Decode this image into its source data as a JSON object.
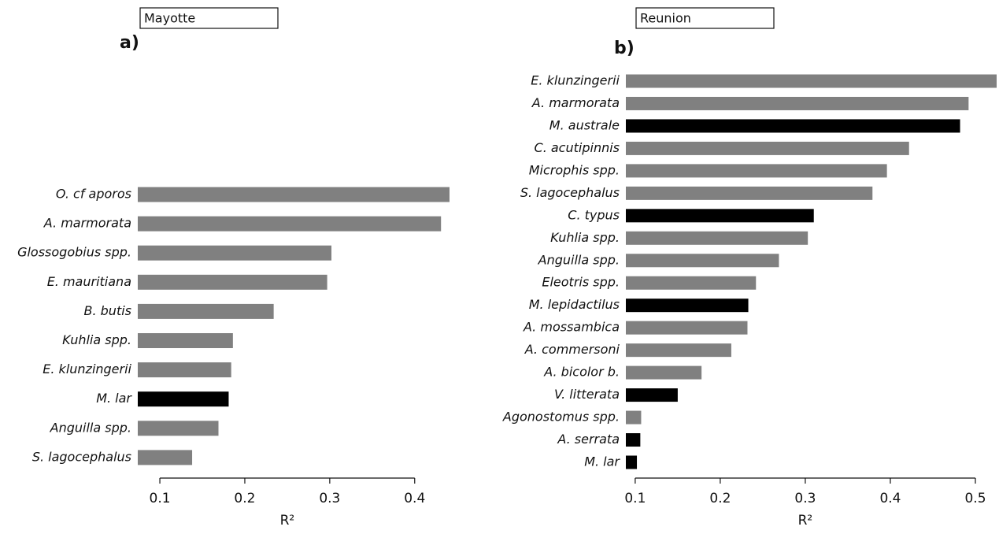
{
  "chart_data": [
    {
      "type": "barh",
      "title": "Mayotte",
      "panel": "a)",
      "xlabel": "R²",
      "categories": [
        "O. cf aporos",
        "A. marmorata",
        "Glossogobius spp.",
        "E. mauritiana",
        "B. butis",
        "Kuhlia spp.",
        "E. klunzingerii",
        "M. lar",
        "Anguilla spp.",
        "S. lagocephalus"
      ],
      "values": [
        0.441,
        0.431,
        0.302,
        0.297,
        0.234,
        0.186,
        0.184,
        0.181,
        0.169,
        0.138
      ],
      "colors": [
        "#808080",
        "#808080",
        "#808080",
        "#808080",
        "#808080",
        "#808080",
        "#808080",
        "#000000",
        "#808080",
        "#808080"
      ],
      "xlim": [
        0.074,
        0.441
      ],
      "xticks": [
        0.1,
        0.2,
        0.3,
        0.4
      ]
    },
    {
      "type": "barh",
      "title": "Reunion",
      "panel": "b)",
      "xlabel": "R²",
      "categories": [
        "E. klunzingerii",
        "A. marmorata",
        "M. australe",
        "C. acutipinnis",
        "Microphis spp.",
        "S. lagocephalus",
        "C. typus",
        "Kuhlia spp.",
        "Anguilla spp.",
        "Eleotris spp.",
        "M. lepidactilus",
        "A. mossambica",
        "A. commersoni",
        "A. bicolor b.",
        "V. litterata",
        "Agonostomus spp.",
        "A. serrata",
        "M. lar"
      ],
      "values": [
        0.525,
        0.492,
        0.482,
        0.422,
        0.396,
        0.379,
        0.31,
        0.303,
        0.269,
        0.242,
        0.233,
        0.232,
        0.213,
        0.178,
        0.15,
        0.107,
        0.106,
        0.102
      ],
      "colors": [
        "#808080",
        "#808080",
        "#000000",
        "#808080",
        "#808080",
        "#808080",
        "#000000",
        "#808080",
        "#808080",
        "#808080",
        "#000000",
        "#808080",
        "#808080",
        "#808080",
        "#000000",
        "#808080",
        "#000000",
        "#000000"
      ],
      "xlim": [
        0.089,
        0.525
      ],
      "xticks": [
        0.1,
        0.2,
        0.3,
        0.4,
        0.5
      ]
    }
  ]
}
